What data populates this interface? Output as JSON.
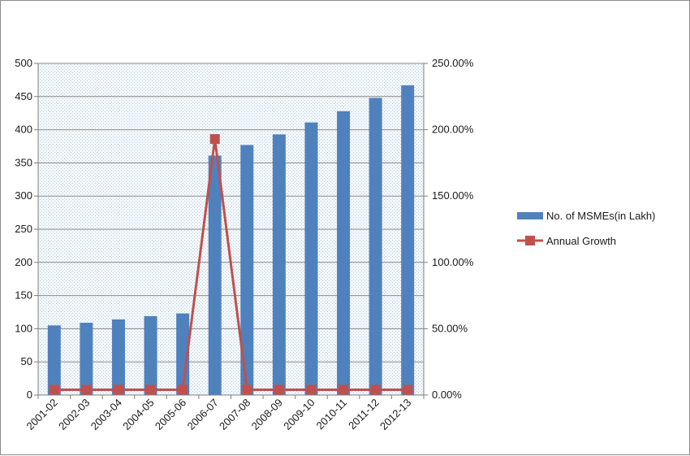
{
  "chart_data": {
    "type": "bar",
    "categories": [
      "2001-02",
      "2002-03",
      "2003-04",
      "2004-05",
      "2005-06",
      "2006-07",
      "2007-08",
      "2008-09",
      "2009-10",
      "2010-11",
      "2011-12",
      "2012-13"
    ],
    "series": [
      {
        "name": "No. of MSMEs(in Lakh)",
        "type": "bar",
        "axis": "left",
        "color": "#4f81bd",
        "values": [
          105,
          109,
          114,
          119,
          123,
          361,
          377,
          393,
          411,
          428,
          448,
          467
        ]
      },
      {
        "name": "Annual Growth",
        "type": "line",
        "axis": "right",
        "color": "#c0504d",
        "values": [
          4.0,
          4.0,
          4.0,
          4.0,
          4.0,
          193.0,
          4.0,
          4.0,
          4.0,
          4.0,
          4.0,
          4.0
        ]
      }
    ],
    "y_left": {
      "min": 0,
      "max": 500,
      "step": 50
    },
    "y_right": {
      "min": 0,
      "max": 250,
      "step": 50,
      "format": "percent2"
    },
    "grid": true,
    "legend": "right"
  }
}
